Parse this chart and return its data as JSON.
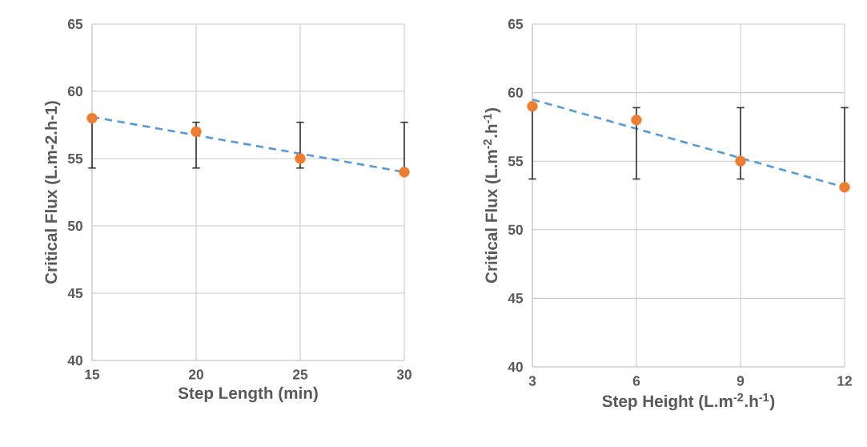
{
  "chart_data": [
    {
      "type": "scatter",
      "xlabel": "Step Length (min)",
      "ylabel": "Critical Flux (L.m-2.h-1)",
      "x": [
        15,
        20,
        25,
        30
      ],
      "xlim": [
        15,
        30
      ],
      "xticks": [
        15,
        20,
        25,
        30
      ],
      "ylim": [
        40,
        65
      ],
      "yticks": [
        40,
        45,
        50,
        55,
        60,
        65
      ],
      "grid": true,
      "marker": "circle",
      "series": [
        {
          "color": "#ed7d31",
          "values": [
            58,
            57,
            55,
            54
          ],
          "errors": [
            [
              54.3,
              58.0
            ],
            [
              54.3,
              57.7
            ],
            [
              54.3,
              57.7
            ],
            [
              54.0,
              57.7
            ]
          ]
        },
        {
          "type": "line",
          "x": [
            15,
            30
          ],
          "values": [
            58.1,
            54.0
          ],
          "color": "#5b9bd5",
          "line_style": "dashed",
          "marker": "none"
        }
      ]
    },
    {
      "type": "scatter",
      "xlabel": "Step Height (L.m$^{-2}$.h$^{-1}$)",
      "ylabel": "Critical Flux (L.m$^{-2}$.h$^{-1}$)",
      "x": [
        3,
        6,
        9,
        12
      ],
      "xlim": [
        3,
        12
      ],
      "xticks": [
        3,
        6,
        9,
        12
      ],
      "ylim": [
        40,
        65
      ],
      "yticks": [
        40,
        45,
        50,
        55,
        60,
        65
      ],
      "grid": true,
      "marker": "circle",
      "series": [
        {
          "color": "#ed7d31",
          "values": [
            59,
            58,
            55,
            53.1
          ],
          "errors": [
            [
              53.7,
              59.0
            ],
            [
              53.7,
              58.9
            ],
            [
              53.7,
              58.9
            ],
            [
              53.1,
              58.9
            ]
          ]
        },
        {
          "type": "line",
          "x": [
            3,
            12
          ],
          "values": [
            59.5,
            53.1
          ],
          "color": "#5b9bd5",
          "line_style": "dashed",
          "marker": "none"
        }
      ]
    }
  ]
}
